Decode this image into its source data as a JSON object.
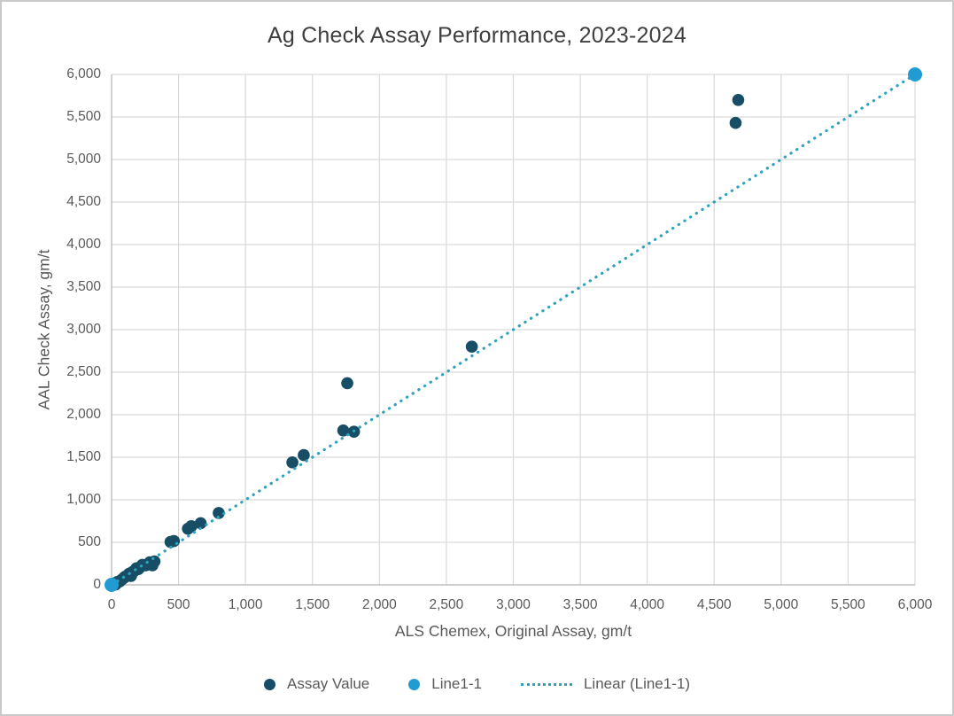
{
  "chart_data": {
    "type": "scatter",
    "title": "Ag Check Assay Performance, 2023-2024",
    "xlabel": "ALS Chemex, Original Assay, gm/t",
    "ylabel": "AAL Check Assay, gm/t",
    "xlim": [
      0,
      6000
    ],
    "ylim": [
      0,
      6000
    ],
    "tick_step": 500,
    "x_ticks": [
      "0",
      "500",
      "1,000",
      "1,500",
      "2,000",
      "2,500",
      "3,000",
      "3,500",
      "4,000",
      "4,500",
      "5,000",
      "5,500",
      "6,000"
    ],
    "y_ticks": [
      "0",
      "500",
      "1,000",
      "1,500",
      "2,000",
      "2,500",
      "3,000",
      "3,500",
      "4,000",
      "4,500",
      "5,000",
      "5,500",
      "6,000"
    ],
    "grid": true,
    "legend_position": "bottom",
    "series": [
      {
        "name": "Assay Value",
        "kind": "scatter",
        "color": "#174e66",
        "marker_radius": 6.8,
        "points": [
          [
            5,
            5
          ],
          [
            15,
            10
          ],
          [
            25,
            20
          ],
          [
            30,
            5
          ],
          [
            45,
            35
          ],
          [
            60,
            40
          ],
          [
            75,
            60
          ],
          [
            90,
            80
          ],
          [
            100,
            95
          ],
          [
            115,
            105
          ],
          [
            130,
            130
          ],
          [
            145,
            105
          ],
          [
            155,
            150
          ],
          [
            170,
            165
          ],
          [
            185,
            195
          ],
          [
            200,
            185
          ],
          [
            215,
            210
          ],
          [
            230,
            235
          ],
          [
            255,
            230
          ],
          [
            285,
            265
          ],
          [
            305,
            230
          ],
          [
            320,
            275
          ],
          [
            440,
            505
          ],
          [
            465,
            515
          ],
          [
            570,
            660
          ],
          [
            595,
            690
          ],
          [
            665,
            725
          ],
          [
            800,
            845
          ],
          [
            1350,
            1440
          ],
          [
            1435,
            1525
          ],
          [
            1730,
            1815
          ],
          [
            1810,
            1800
          ],
          [
            1760,
            2370
          ],
          [
            2690,
            2800
          ],
          [
            4660,
            5430
          ],
          [
            4680,
            5700
          ]
        ]
      },
      {
        "name": "Line1-1",
        "kind": "scatter",
        "color": "#219cd2",
        "marker_radius": 8,
        "points": [
          [
            0,
            0
          ],
          [
            6000,
            6000
          ]
        ]
      },
      {
        "name": "Linear (Line1-1)",
        "kind": "trendline",
        "color": "#2da3bd",
        "style": "dotted",
        "from": [
          0,
          0
        ],
        "to": [
          6000,
          6000
        ]
      }
    ],
    "legend": [
      {
        "label": "Assay Value",
        "swatch": "dot",
        "color": "#174e66"
      },
      {
        "label": "Line1-1",
        "swatch": "dot",
        "color": "#219cd2"
      },
      {
        "label": "Linear (Line1-1)",
        "swatch": "dotted-line",
        "color": "#2da3bd"
      }
    ],
    "colors": {
      "gridline": "#d9d9d9",
      "axis_line": "#bfbfbf",
      "tick_text": "#595959",
      "title_text": "#3f3f3f",
      "frame_border": "#c9c9c9"
    }
  }
}
